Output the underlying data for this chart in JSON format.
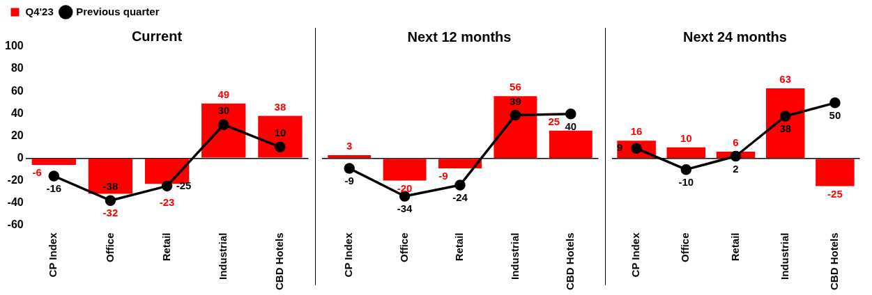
{
  "chart_data": [
    {
      "type": "bar",
      "title": "Current",
      "categories": [
        "CP Index",
        "Office",
        "Retail",
        "Industrial",
        "CBD Hotels"
      ],
      "series": [
        {
          "name": "Q4'23",
          "color": "#ff0000",
          "values": [
            -6,
            -32,
            -23,
            49,
            38
          ]
        },
        {
          "name": "Previous quarter",
          "type": "line",
          "color": "#000000",
          "marker": "circle",
          "values": [
            -16,
            -38,
            -25,
            30,
            10
          ]
        }
      ],
      "ylim": [
        -60,
        100
      ],
      "yticks": [
        -60,
        -40,
        -20,
        0,
        20,
        40,
        60,
        80,
        100
      ],
      "data_labels": true,
      "legend": "top left"
    },
    {
      "type": "bar",
      "title": "Next 12 months",
      "categories": [
        "CP Index",
        "Office",
        "Retail",
        "Industrial",
        "CBD Hotels"
      ],
      "series": [
        {
          "color": "#ff0000",
          "values": [
            3,
            -20,
            -9,
            56,
            25
          ]
        },
        {
          "type": "line",
          "color": "#000000",
          "marker": "circle",
          "values": [
            -9,
            -34,
            -24,
            39,
            40
          ]
        }
      ],
      "ylim": [
        -60,
        100
      ],
      "yticks": [
        -60,
        -40,
        -20,
        0,
        20,
        40,
        60,
        80,
        100
      ],
      "data_labels": true,
      "tick_labels": "x"
    },
    {
      "type": "bar",
      "title": "Next 24 months",
      "categories": [
        "CP Index",
        "Office",
        "Retail",
        "Industrial",
        "CBD Hotels"
      ],
      "series": [
        {
          "color": "#ff0000",
          "values": [
            16,
            10,
            6,
            63,
            -25
          ]
        },
        {
          "type": "line",
          "color": "#000000",
          "marker": "circle",
          "values": [
            9,
            -10,
            2,
            38,
            50
          ]
        }
      ],
      "ylim": [
        -60,
        100
      ],
      "yticks": [
        -60,
        -40,
        -20,
        0,
        20,
        40,
        60,
        80,
        100
      ],
      "data_labels": true,
      "tick_labels": "x"
    }
  ]
}
